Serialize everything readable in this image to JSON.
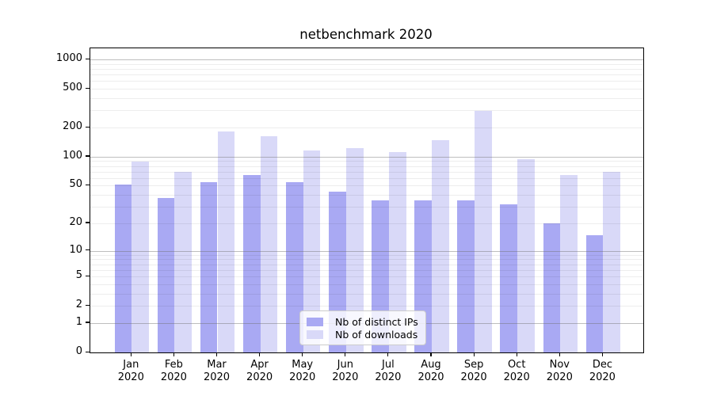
{
  "title": "netbenchmark 2020",
  "chart_data": {
    "type": "bar",
    "title": "netbenchmark 2020",
    "categories": [
      "Jan 2020",
      "Feb 2020",
      "Mar 2020",
      "Apr 2020",
      "May 2020",
      "Jun 2020",
      "Jul 2020",
      "Aug 2020",
      "Sep 2020",
      "Oct 2020",
      "Nov 2020",
      "Dec 2020"
    ],
    "x_months": [
      "Jan",
      "Feb",
      "Mar",
      "Apr",
      "May",
      "Jun",
      "Jul",
      "Aug",
      "Sep",
      "Oct",
      "Nov",
      "Dec"
    ],
    "x_year": "2020",
    "series": [
      {
        "name": "Nb of distinct IPs",
        "color": "#a9a9f3",
        "values": [
          51,
          37,
          54,
          64,
          54,
          43,
          35,
          35,
          35,
          32,
          20,
          15
        ]
      },
      {
        "name": "Nb of downloads",
        "color": "#d9d9f8",
        "values": [
          89,
          69,
          183,
          164,
          115,
          123,
          111,
          149,
          298,
          95,
          64,
          70
        ]
      }
    ],
    "xlabel": "",
    "ylabel": "",
    "y_axis": {
      "scale": "symlog",
      "tick_labels": [
        "0",
        "1",
        "2",
        "5",
        "10",
        "20",
        "50",
        "100",
        "200",
        "500",
        "1000"
      ],
      "ticks": [
        0,
        1,
        2,
        5,
        10,
        20,
        50,
        100,
        200,
        500,
        1000
      ],
      "major_grid": [
        1,
        10,
        100,
        1000
      ],
      "range": [
        0,
        1300
      ]
    },
    "grid": true,
    "legend_position": "lower-center-inside"
  }
}
